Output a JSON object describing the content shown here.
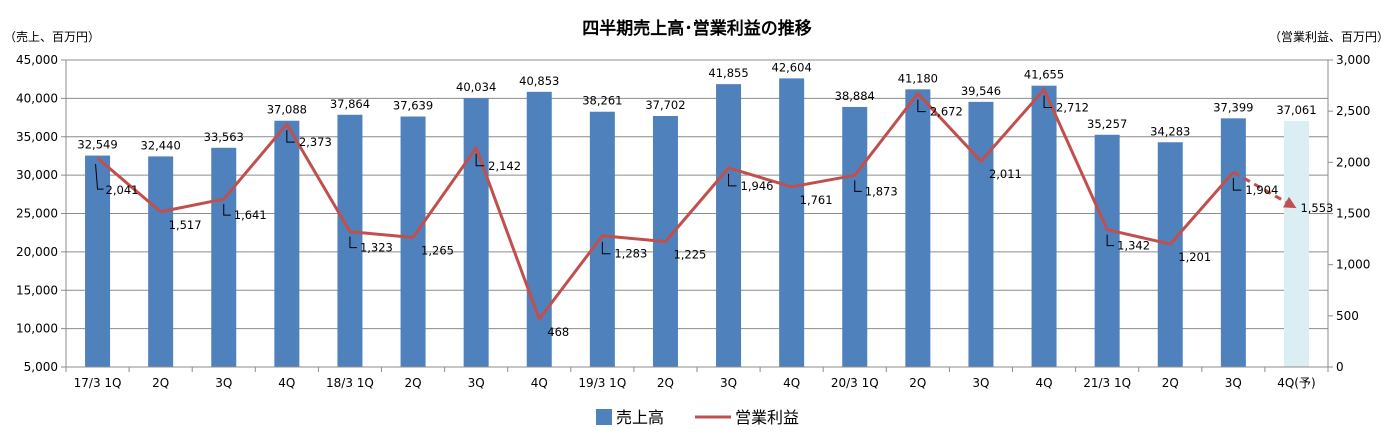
{
  "chart_data": {
    "type": "bar",
    "title": "四半期売上高･営業利益の推移",
    "y_left_unit": "（売上、百万円）",
    "y_right_unit": "（営業利益、百万円）",
    "categories": [
      "17/3 1Q",
      "2Q",
      "3Q",
      "4Q",
      "18/3 1Q",
      "2Q",
      "3Q",
      "4Q",
      "19/3 1Q",
      "2Q",
      "3Q",
      "4Q",
      "20/3 1Q",
      "2Q",
      "3Q",
      "4Q",
      "21/3 1Q",
      "2Q",
      "3Q",
      "4Q(予)"
    ],
    "series": [
      {
        "name": "売上高",
        "type": "bar",
        "axis": "left",
        "color": "#4F81BD",
        "forecast_color": "#DAEEF3",
        "values": [
          32549,
          32440,
          33563,
          37088,
          37864,
          37639,
          40034,
          40853,
          38261,
          37702,
          41855,
          42604,
          38884,
          41180,
          39546,
          41655,
          35257,
          34283,
          37399,
          37061
        ],
        "labels": [
          "32,549",
          "32,440",
          "33,563",
          "37,088",
          "37,864",
          "37,639",
          "40,034",
          "40,853",
          "38,261",
          "37,702",
          "41,855",
          "42,604",
          "38,884",
          "41,180",
          "39,546",
          "41,655",
          "35,257",
          "34,283",
          "37,399",
          "37,061"
        ]
      },
      {
        "name": "営業利益",
        "type": "line",
        "axis": "right",
        "color": "#C0504D",
        "values": [
          2041,
          1517,
          1641,
          2373,
          1323,
          1265,
          2142,
          468,
          1283,
          1225,
          1946,
          1761,
          1873,
          2672,
          2011,
          2712,
          1342,
          1201,
          1904,
          1553
        ],
        "labels": [
          "2,041",
          "1,517",
          "1,641",
          "2,373",
          "1,323",
          "1,265",
          "2,142",
          "468",
          "1,283",
          "1,225",
          "1,946",
          "1,761",
          "1,873",
          "2,672",
          "2,011",
          "2,712",
          "1,342",
          "1,201",
          "1,904",
          "1,553"
        ]
      }
    ],
    "forecast_index": 19,
    "y_left": {
      "min": 5000,
      "max": 45000,
      "step": 5000,
      "tick_labels": [
        "5,000",
        "10,000",
        "15,000",
        "20,000",
        "25,000",
        "30,000",
        "35,000",
        "40,000",
        "45,000"
      ]
    },
    "y_right": {
      "min": 0,
      "max": 3000,
      "step": 500,
      "tick_labels": [
        "0",
        "500",
        "1,000",
        "1,500",
        "2,000",
        "2,500",
        "3,000"
      ]
    },
    "grid": true,
    "legend_position": "bottom"
  }
}
